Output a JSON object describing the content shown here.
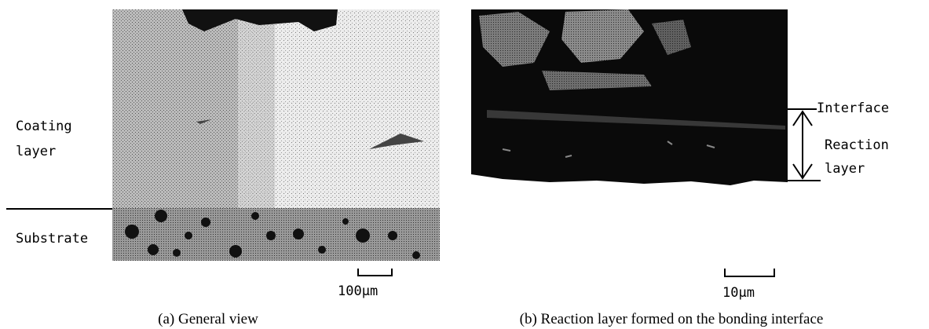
{
  "panels": [
    {
      "caption": "(a) General view",
      "scale_bar": "100μm",
      "labels": [
        "Coating",
        "layer",
        "Substrate"
      ]
    },
    {
      "caption": "(b) Reaction layer formed on the bonding interface",
      "scale_bar": "10μm",
      "labels": [
        "Interface",
        "Reaction",
        "layer"
      ]
    }
  ]
}
